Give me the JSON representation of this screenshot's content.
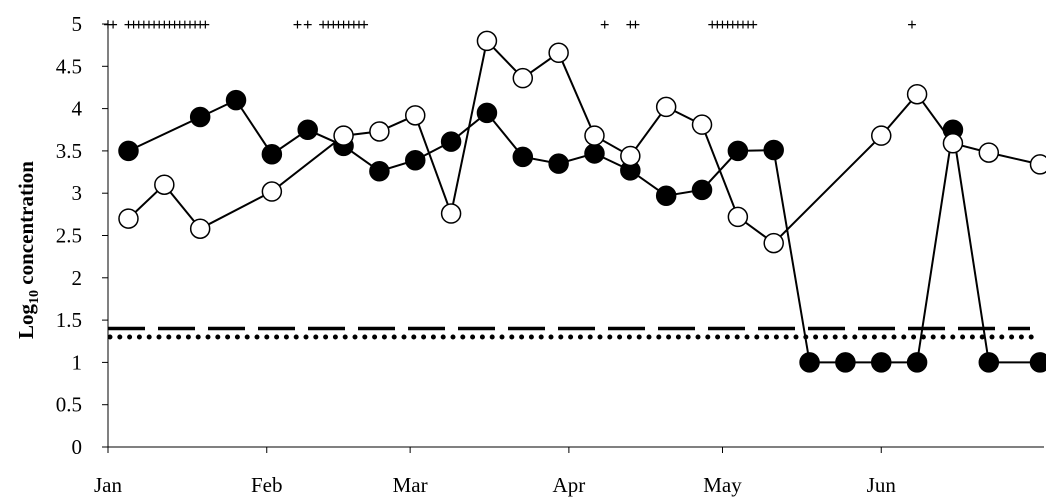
{
  "chart_data": {
    "type": "line",
    "ylabel_main": "Log",
    "ylabel_sub": "10",
    "ylabel_rest": " concentration",
    "ylim": [
      0,
      5
    ],
    "yticks": [
      "0",
      "0.5",
      "1",
      "1.5",
      "2",
      "2.5",
      "3",
      "3.5",
      "4",
      "4.5",
      "5"
    ],
    "x_domain_days": [
      0,
      182
    ],
    "xticks": [
      {
        "label": "Jan",
        "day": 0
      },
      {
        "label": "Feb",
        "day": 31
      },
      {
        "label": "Mar",
        "day": 59
      },
      {
        "label": "Apr",
        "day": 90
      },
      {
        "label": "May",
        "day": 120
      },
      {
        "label": "Jun",
        "day": 151
      }
    ],
    "grid": false,
    "series": [
      {
        "marker": "filled-circle",
        "color": "#000000",
        "points": [
          {
            "x": 4,
            "y": 3.5
          },
          {
            "x": 18,
            "y": 3.9
          },
          {
            "x": 25,
            "y": 4.1
          },
          {
            "x": 32,
            "y": 3.46
          },
          {
            "x": 39,
            "y": 3.75
          },
          {
            "x": 46,
            "y": 3.56
          },
          {
            "x": 53,
            "y": 3.26
          },
          {
            "x": 60,
            "y": 3.39
          },
          {
            "x": 67,
            "y": 3.61
          },
          {
            "x": 74,
            "y": 3.95
          },
          {
            "x": 81,
            "y": 3.43
          },
          {
            "x": 88,
            "y": 3.35
          },
          {
            "x": 95,
            "y": 3.47
          },
          {
            "x": 102,
            "y": 3.27
          },
          {
            "x": 109,
            "y": 2.97
          },
          {
            "x": 116,
            "y": 3.04
          },
          {
            "x": 123,
            "y": 3.5
          },
          {
            "x": 130,
            "y": 3.51
          },
          {
            "x": 137,
            "y": 1.0
          },
          {
            "x": 144,
            "y": 1.0
          },
          {
            "x": 151,
            "y": 1.0
          },
          {
            "x": 158,
            "y": 1.0
          },
          {
            "x": 165,
            "y": 3.75
          },
          {
            "x": 172,
            "y": 1.0
          },
          {
            "x": 182,
            "y": 1.0
          }
        ]
      },
      {
        "marker": "open-circle",
        "color": "#000000",
        "points": [
          {
            "x": 4,
            "y": 2.7
          },
          {
            "x": 11,
            "y": 3.1
          },
          {
            "x": 18,
            "y": 2.58
          },
          {
            "x": 32,
            "y": 3.02
          },
          {
            "x": 46,
            "y": 3.68
          },
          {
            "x": 53,
            "y": 3.73
          },
          {
            "x": 60,
            "y": 3.92
          },
          {
            "x": 67,
            "y": 2.76
          },
          {
            "x": 74,
            "y": 4.8
          },
          {
            "x": 81,
            "y": 4.36
          },
          {
            "x": 88,
            "y": 4.66
          },
          {
            "x": 95,
            "y": 3.68
          },
          {
            "x": 102,
            "y": 3.44
          },
          {
            "x": 109,
            "y": 4.02
          },
          {
            "x": 116,
            "y": 3.81
          },
          {
            "x": 123,
            "y": 2.72
          },
          {
            "x": 130,
            "y": 2.41
          },
          {
            "x": 151,
            "y": 3.68
          },
          {
            "x": 158,
            "y": 4.17
          },
          {
            "x": 165,
            "y": 3.59
          },
          {
            "x": 172,
            "y": 3.48
          },
          {
            "x": 182,
            "y": 3.34
          }
        ]
      }
    ],
    "reference_lines": [
      {
        "style": "dashed",
        "y": 1.4
      },
      {
        "style": "dotted",
        "y": 1.3
      }
    ],
    "event_markers": {
      "symbol": "+",
      "y": 5,
      "x": [
        0,
        1,
        4,
        5,
        6,
        7,
        8,
        9,
        10,
        11,
        12,
        13,
        14,
        15,
        16,
        17,
        18,
        19,
        37,
        39,
        42,
        43,
        44,
        45,
        46,
        47,
        48,
        49,
        50,
        97,
        102,
        103,
        118,
        119,
        120,
        121,
        122,
        123,
        124,
        125,
        126,
        157
      ]
    }
  }
}
